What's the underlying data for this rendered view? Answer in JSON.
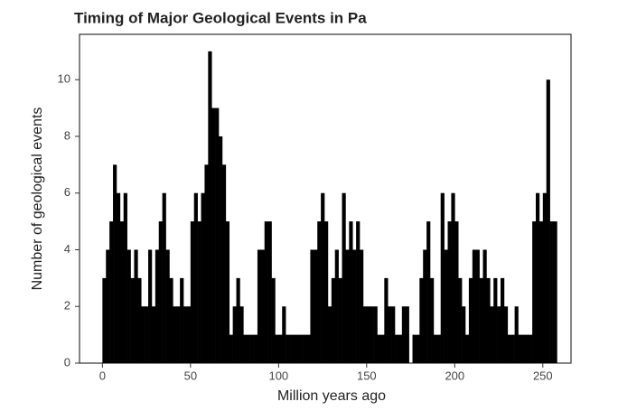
{
  "chart_data": {
    "type": "histogram",
    "title": "Timing of Major Geological Events in Pa",
    "x_label": "Million years ago",
    "y_label": "Number of geological events",
    "color": "#000000",
    "bins": [
      0,
      2,
      4,
      6,
      8,
      10,
      12,
      14,
      16,
      18,
      20,
      22,
      24,
      26,
      28,
      30,
      32,
      34,
      36,
      38,
      40,
      42,
      44,
      46,
      48,
      50,
      52,
      54,
      56,
      58,
      60,
      62,
      64,
      66,
      68,
      70,
      72,
      74,
      76,
      78,
      80,
      82,
      84,
      86,
      88,
      90,
      92,
      94,
      96,
      98,
      100,
      102,
      104,
      106,
      108,
      110,
      112,
      114,
      116,
      118,
      120,
      122,
      124,
      126,
      128,
      130,
      132,
      134,
      136,
      138,
      140,
      142,
      144,
      146,
      148,
      150,
      152,
      154,
      156,
      158,
      160,
      162,
      164,
      166,
      168,
      170,
      172,
      174,
      176,
      178,
      180,
      182,
      184,
      186,
      188,
      190,
      192,
      194,
      196,
      198,
      200,
      202,
      204,
      206,
      208,
      210,
      212,
      214,
      216,
      218,
      220,
      222,
      224,
      226,
      228,
      230,
      232,
      234,
      236,
      238,
      240,
      242,
      244,
      246,
      248,
      250,
      252,
      254,
      256,
      258
    ],
    "values": [
      3,
      4,
      5,
      7,
      6,
      5,
      6,
      4,
      3,
      4,
      3,
      2,
      2,
      4,
      2,
      4,
      5,
      6,
      4,
      3,
      2,
      2,
      3,
      2,
      2,
      5,
      6,
      5,
      6,
      7,
      11,
      9,
      9,
      8,
      7,
      5,
      1,
      2,
      3,
      2,
      1,
      1,
      1,
      1,
      4,
      4,
      5,
      5,
      3,
      1,
      1,
      2,
      1,
      1,
      1,
      1,
      1,
      1,
      1,
      4,
      4,
      5,
      6,
      5,
      2,
      3,
      4,
      3,
      6,
      4,
      5,
      4,
      5,
      4,
      2,
      2,
      2,
      2,
      1,
      1,
      3,
      2,
      2,
      1,
      1,
      2,
      2,
      0,
      1,
      1,
      3,
      4,
      5,
      3,
      1,
      1,
      6,
      4,
      5,
      6,
      5,
      3,
      2,
      1,
      3,
      4,
      4,
      3,
      4,
      3,
      2,
      3,
      2,
      3,
      2,
      1,
      1,
      2,
      1,
      1,
      1,
      1,
      5,
      6,
      5,
      6,
      10,
      5,
      5
    ],
    "xlim": [
      -13,
      266
    ],
    "ylim": [
      0,
      11.6
    ],
    "xticks": [
      0,
      50,
      100,
      150,
      200,
      250
    ],
    "yticks": [
      0,
      2,
      4,
      6,
      8,
      10
    ]
  }
}
